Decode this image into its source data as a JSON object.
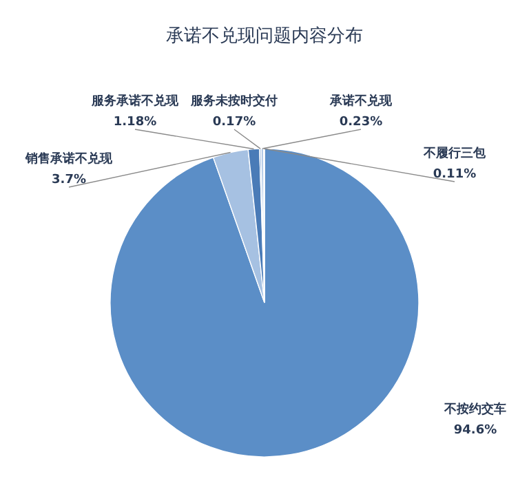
{
  "chart_data": {
    "type": "pie",
    "title": "承诺不兑现问题内容分布",
    "categories": [
      "不按约交车",
      "销售承诺不兑现",
      "服务承诺不兑现",
      "服务未按时交付",
      "承诺不兑现",
      "不履行三包"
    ],
    "values": [
      94.6,
      3.7,
      1.18,
      0.17,
      0.23,
      0.11
    ],
    "value_labels": [
      "94.6%",
      "3.7%",
      "1.18%",
      "0.17%",
      "0.23%",
      "0.11%"
    ],
    "colors": [
      "#5b8ec7",
      "#a6c1e2",
      "#4a7bb7",
      "#7fa6d4",
      "#9dbbe0",
      "#b9cfea"
    ],
    "legend": false
  }
}
